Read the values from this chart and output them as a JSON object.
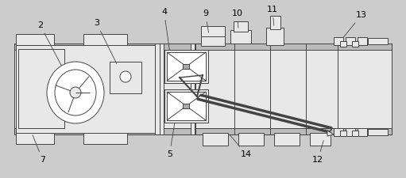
{
  "bg_color": "#cccccc",
  "line_color": "#444444",
  "fill_color": "#ffffff",
  "fill_light": "#e8e8e8",
  "lw": 0.7,
  "fig_width": 5.11,
  "fig_height": 2.25
}
